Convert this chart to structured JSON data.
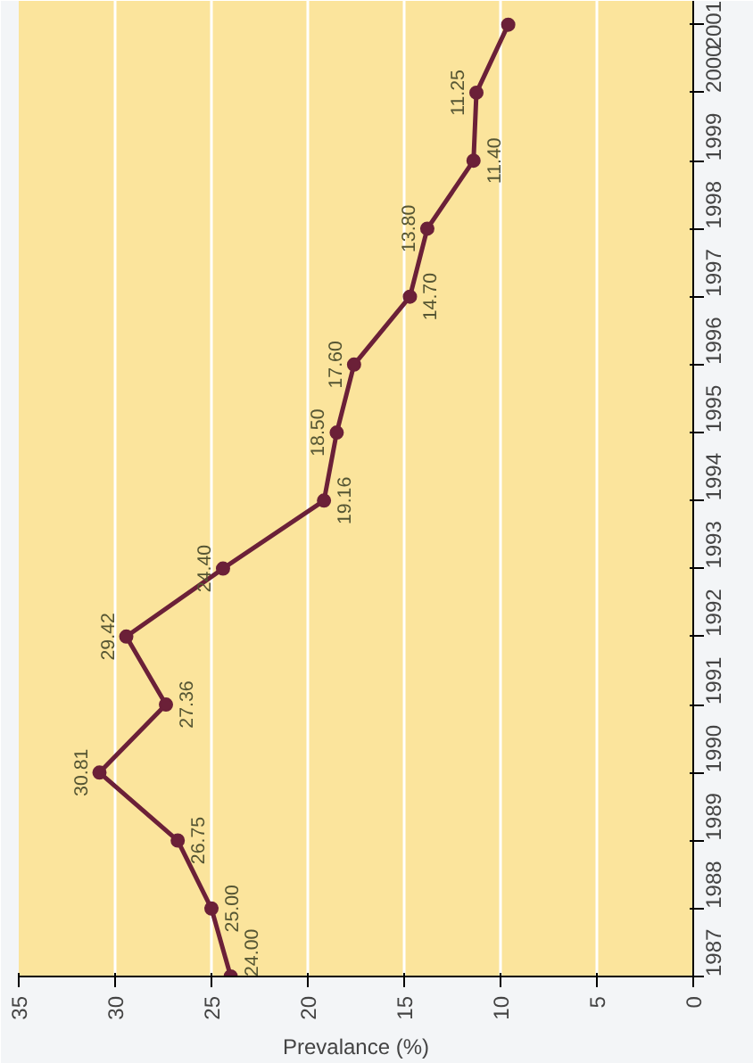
{
  "chart_data": {
    "type": "line",
    "orientation": "horizontal",
    "xlabel": "Prevalance (%)",
    "categories": [
      "2001",
      "2000",
      "1999",
      "1998",
      "1997",
      "1996",
      "1995",
      "1994",
      "1993",
      "1992",
      "1991",
      "1990",
      "1989",
      "1988",
      "1987"
    ],
    "values": [
      9.6,
      11.25,
      11.4,
      13.8,
      14.7,
      17.6,
      18.5,
      19.16,
      24.4,
      29.42,
      27.36,
      30.81,
      26.75,
      25.0,
      24.0
    ],
    "value_labels": [
      null,
      "11.25",
      "11.40",
      "13.80",
      "14.70",
      "17.60",
      "18.50",
      "19.16",
      "24.40",
      "29.42",
      "27.36",
      "30.81",
      "26.75",
      "25.00",
      "24.00"
    ],
    "color": "#6b2038",
    "marker": "circle",
    "line_style": "solid",
    "grid": "x",
    "xlim": [
      35,
      0
    ],
    "xticks": [
      0,
      5,
      10,
      15,
      20,
      25,
      30,
      35
    ]
  }
}
